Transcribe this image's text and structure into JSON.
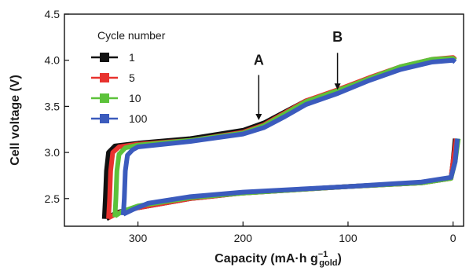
{
  "chart_data": {
    "type": "line",
    "xlabel": {
      "main": "Capacity (mA·h g",
      "sup": "−1",
      "sub": "gold",
      "close": ")"
    },
    "ylabel": "Cell voltage (V)",
    "xlim": [
      370,
      -10
    ],
    "ylim": [
      2.2,
      4.5
    ],
    "xticks": [
      300,
      200,
      100,
      0
    ],
    "yticks": [
      2.5,
      3.0,
      3.5,
      4.0,
      4.5
    ],
    "x_reversed": true,
    "grid": false,
    "legend_title": "Cycle number",
    "legend_position": "top-left",
    "series": [
      {
        "name": "1",
        "color": "#111111",
        "charge": [
          [
            332,
            2.28
          ],
          [
            331,
            2.5
          ],
          [
            330,
            2.8
          ],
          [
            328,
            3.0
          ],
          [
            322,
            3.07
          ],
          [
            300,
            3.1
          ],
          [
            250,
            3.15
          ],
          [
            200,
            3.24
          ],
          [
            180,
            3.32
          ],
          [
            160,
            3.44
          ],
          [
            140,
            3.56
          ],
          [
            110,
            3.67
          ],
          [
            80,
            3.8
          ],
          [
            50,
            3.92
          ],
          [
            20,
            4.0
          ],
          [
            0,
            4.02
          ],
          [
            -2,
            4.0
          ]
        ],
        "discharge": [
          [
            -2,
            3.15
          ],
          [
            0,
            2.9
          ],
          [
            2,
            2.72
          ],
          [
            30,
            2.67
          ],
          [
            100,
            2.63
          ],
          [
            200,
            2.56
          ],
          [
            250,
            2.5
          ],
          [
            300,
            2.4
          ],
          [
            320,
            2.35
          ],
          [
            330,
            2.28
          ]
        ]
      },
      {
        "name": "5",
        "color": "#e8322e",
        "charge": [
          [
            328,
            2.28
          ],
          [
            327,
            2.5
          ],
          [
            326,
            2.8
          ],
          [
            324,
            3.0
          ],
          [
            318,
            3.06
          ],
          [
            300,
            3.09
          ],
          [
            250,
            3.13
          ],
          [
            200,
            3.22
          ],
          [
            180,
            3.3
          ],
          [
            160,
            3.43
          ],
          [
            140,
            3.56
          ],
          [
            110,
            3.68
          ],
          [
            80,
            3.81
          ],
          [
            50,
            3.93
          ],
          [
            20,
            4.01
          ],
          [
            0,
            4.03
          ],
          [
            -2,
            4.01
          ]
        ],
        "discharge": [
          [
            -3,
            3.15
          ],
          [
            0,
            2.9
          ],
          [
            2,
            2.72
          ],
          [
            30,
            2.67
          ],
          [
            100,
            2.63
          ],
          [
            200,
            2.56
          ],
          [
            250,
            2.5
          ],
          [
            300,
            2.4
          ],
          [
            320,
            2.34
          ],
          [
            328,
            2.29
          ]
        ]
      },
      {
        "name": "10",
        "color": "#5cc23a",
        "charge": [
          [
            322,
            2.3
          ],
          [
            321,
            2.5
          ],
          [
            320,
            2.8
          ],
          [
            318,
            2.98
          ],
          [
            312,
            3.05
          ],
          [
            300,
            3.08
          ],
          [
            250,
            3.13
          ],
          [
            200,
            3.21
          ],
          [
            180,
            3.29
          ],
          [
            160,
            3.42
          ],
          [
            140,
            3.55
          ],
          [
            110,
            3.67
          ],
          [
            80,
            3.8
          ],
          [
            50,
            3.93
          ],
          [
            20,
            4.01
          ],
          [
            0,
            4.02
          ],
          [
            -2,
            4.0
          ]
        ],
        "discharge": [
          [
            -5,
            3.15
          ],
          [
            -2,
            2.9
          ],
          [
            2,
            2.72
          ],
          [
            30,
            2.67
          ],
          [
            100,
            2.63
          ],
          [
            200,
            2.56
          ],
          [
            250,
            2.51
          ],
          [
            300,
            2.42
          ],
          [
            315,
            2.36
          ],
          [
            322,
            2.31
          ]
        ]
      },
      {
        "name": "100",
        "color": "#3b5bbd",
        "charge": [
          [
            314,
            2.32
          ],
          [
            313,
            2.5
          ],
          [
            312,
            2.8
          ],
          [
            310,
            2.97
          ],
          [
            305,
            3.03
          ],
          [
            300,
            3.06
          ],
          [
            250,
            3.12
          ],
          [
            200,
            3.2
          ],
          [
            180,
            3.27
          ],
          [
            160,
            3.39
          ],
          [
            140,
            3.52
          ],
          [
            110,
            3.64
          ],
          [
            80,
            3.78
          ],
          [
            50,
            3.9
          ],
          [
            20,
            3.98
          ],
          [
            0,
            4.0
          ],
          [
            -2,
            3.98
          ]
        ],
        "discharge": [
          [
            -4,
            3.15
          ],
          [
            -2,
            2.9
          ],
          [
            2,
            2.73
          ],
          [
            30,
            2.68
          ],
          [
            100,
            2.63
          ],
          [
            200,
            2.57
          ],
          [
            250,
            2.52
          ],
          [
            290,
            2.45
          ],
          [
            305,
            2.38
          ],
          [
            314,
            2.33
          ]
        ]
      }
    ],
    "annotations": [
      {
        "label": "A",
        "x": 185,
        "y_text": 3.95,
        "y_arrow_start": 3.84,
        "y_arrow_end": 3.35
      },
      {
        "label": "B",
        "x": 110,
        "y_text": 4.2,
        "y_arrow_start": 4.08,
        "y_arrow_end": 3.68
      }
    ]
  }
}
